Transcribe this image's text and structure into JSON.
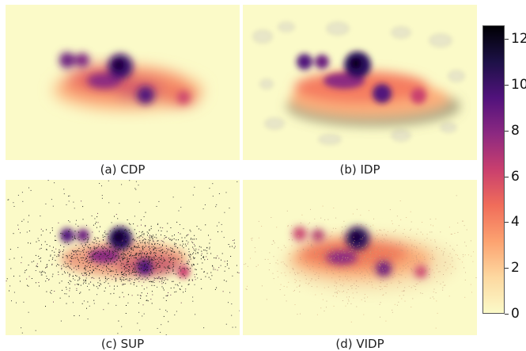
{
  "panels": [
    {
      "id": "cdp",
      "caption": "(a) CDP"
    },
    {
      "id": "idp",
      "caption": "(b) IDP"
    },
    {
      "id": "sup",
      "caption": "(c) SUP"
    },
    {
      "id": "vidp",
      "caption": "(d) VIDP"
    }
  ],
  "colorbar": {
    "min": 0,
    "max": 12.6,
    "ticks": [
      "0",
      "2",
      "4",
      "6",
      "8",
      "10",
      "12"
    ],
    "colormap": "magma_r",
    "stops": [
      "#fbfac8",
      "#fdd8a0",
      "#fca270",
      "#f06d5a",
      "#c93f6e",
      "#8c2981",
      "#51127c",
      "#1d1147",
      "#000004"
    ]
  }
}
